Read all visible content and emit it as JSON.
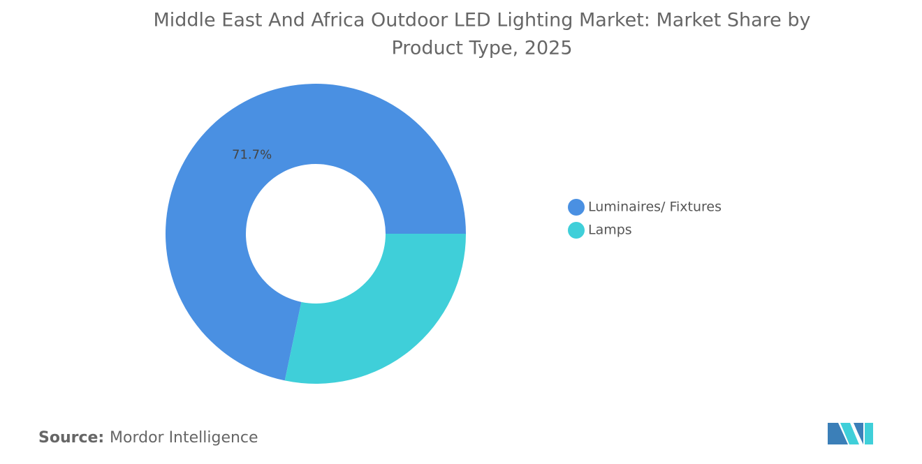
{
  "chart_data": {
    "type": "donut",
    "title": "Middle East And Africa Outdoor LED Lighting Market: Market Share by",
    "subtitle": "Product Type, 2025",
    "categories": [
      "Luminaires/ Fixtures",
      "Lamps"
    ],
    "values": [
      71.7,
      28.3
    ],
    "value_labels": [
      "71.7%",
      null
    ],
    "colors": [
      "#4a90e2",
      "#3fcfd9"
    ],
    "source_label": "Source:",
    "source": "Mordor Intelligence"
  }
}
